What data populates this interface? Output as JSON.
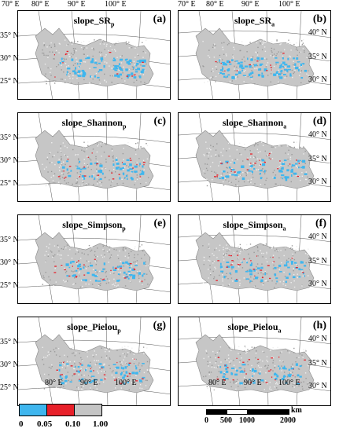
{
  "top_lon_ticks": [
    "70° E",
    "80° E",
    "90° E",
    "100° E"
  ],
  "bottom_lon_ticks": [
    "80° E",
    "90° E",
    "100° E"
  ],
  "left_lat_ticks": [
    "35° N",
    "30° N",
    "25° N"
  ],
  "right_lat_ticks": [
    "40° N",
    "35° N",
    "30° N"
  ],
  "panels": [
    {
      "title": "slope_SR",
      "sub": "p",
      "letter": "(a)",
      "side": "left"
    },
    {
      "title": "slope_SR",
      "sub": "a",
      "letter": "(b)",
      "side": "right"
    },
    {
      "title": "slope_Shannon",
      "sub": "p",
      "letter": "(c)",
      "side": "left"
    },
    {
      "title": "slope_Shannon",
      "sub": "a",
      "letter": "(d)",
      "side": "right"
    },
    {
      "title": "slope_Simpson",
      "sub": "p",
      "letter": "(e)",
      "side": "left"
    },
    {
      "title": "slope_Simpson",
      "sub": "a",
      "letter": "(f)",
      "side": "right"
    },
    {
      "title": "slope_Pielou",
      "sub": "p",
      "letter": "(g)",
      "side": "left"
    },
    {
      "title": "slope_Pielou",
      "sub": "a",
      "letter": "(h)",
      "side": "right"
    }
  ],
  "legend": {
    "labels": [
      "0",
      "0.05",
      "0.10",
      "1.00"
    ],
    "colors": [
      "#3fb6ee",
      "#e8202a",
      "#c4c4c4"
    ]
  },
  "scale_bar": {
    "unit": "km",
    "labels": [
      "0",
      "500",
      "1000",
      "2000"
    ]
  },
  "colors": {
    "region_fill": "#c6c6c6",
    "blue": "#3fb6ee",
    "red": "#e8202a",
    "grid": "#555555"
  }
}
